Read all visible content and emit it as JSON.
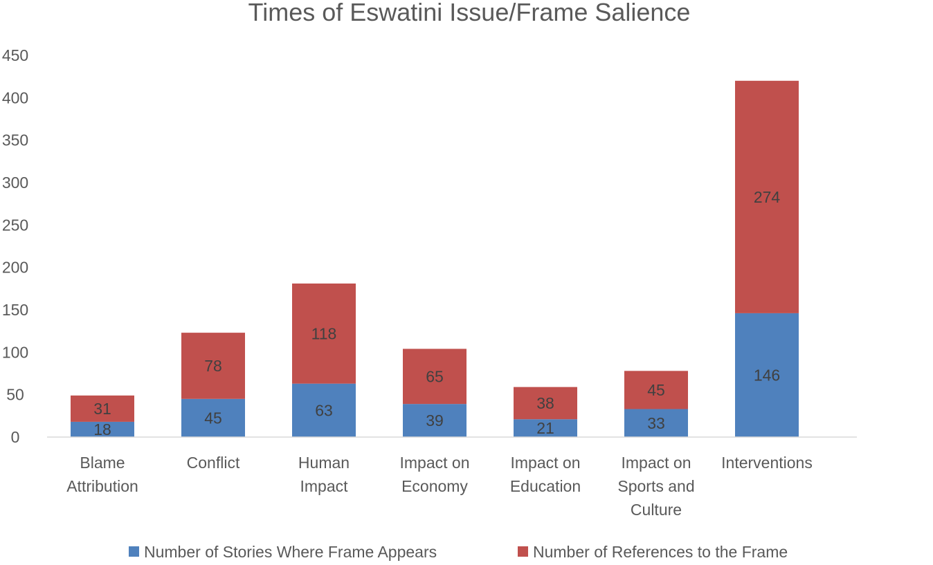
{
  "chart_data": {
    "type": "bar",
    "stacked": true,
    "title": "Times of Eswatini Issue/Frame Salience",
    "categories": [
      [
        "Blame",
        "Attribution"
      ],
      [
        "Conflict"
      ],
      [
        "Human",
        "Impact"
      ],
      [
        "Impact on",
        "Economy"
      ],
      [
        "Impact on",
        "Education"
      ],
      [
        "Impact on",
        "Sports and",
        "Culture"
      ],
      [
        "Interventions"
      ]
    ],
    "series": [
      {
        "name": "Number of Stories Where Frame Appears",
        "color": "#4f81bd",
        "values": [
          18,
          45,
          63,
          39,
          21,
          33,
          146
        ]
      },
      {
        "name": "Number of References to the Frame",
        "color": "#c0504d",
        "values": [
          31,
          78,
          118,
          65,
          38,
          45,
          274
        ]
      }
    ],
    "ylim": [
      0,
      450
    ],
    "yticks": [
      0,
      50,
      100,
      150,
      200,
      250,
      300,
      350,
      400,
      450
    ],
    "grid": false,
    "legend_position": "bottom",
    "data_labels": true
  }
}
